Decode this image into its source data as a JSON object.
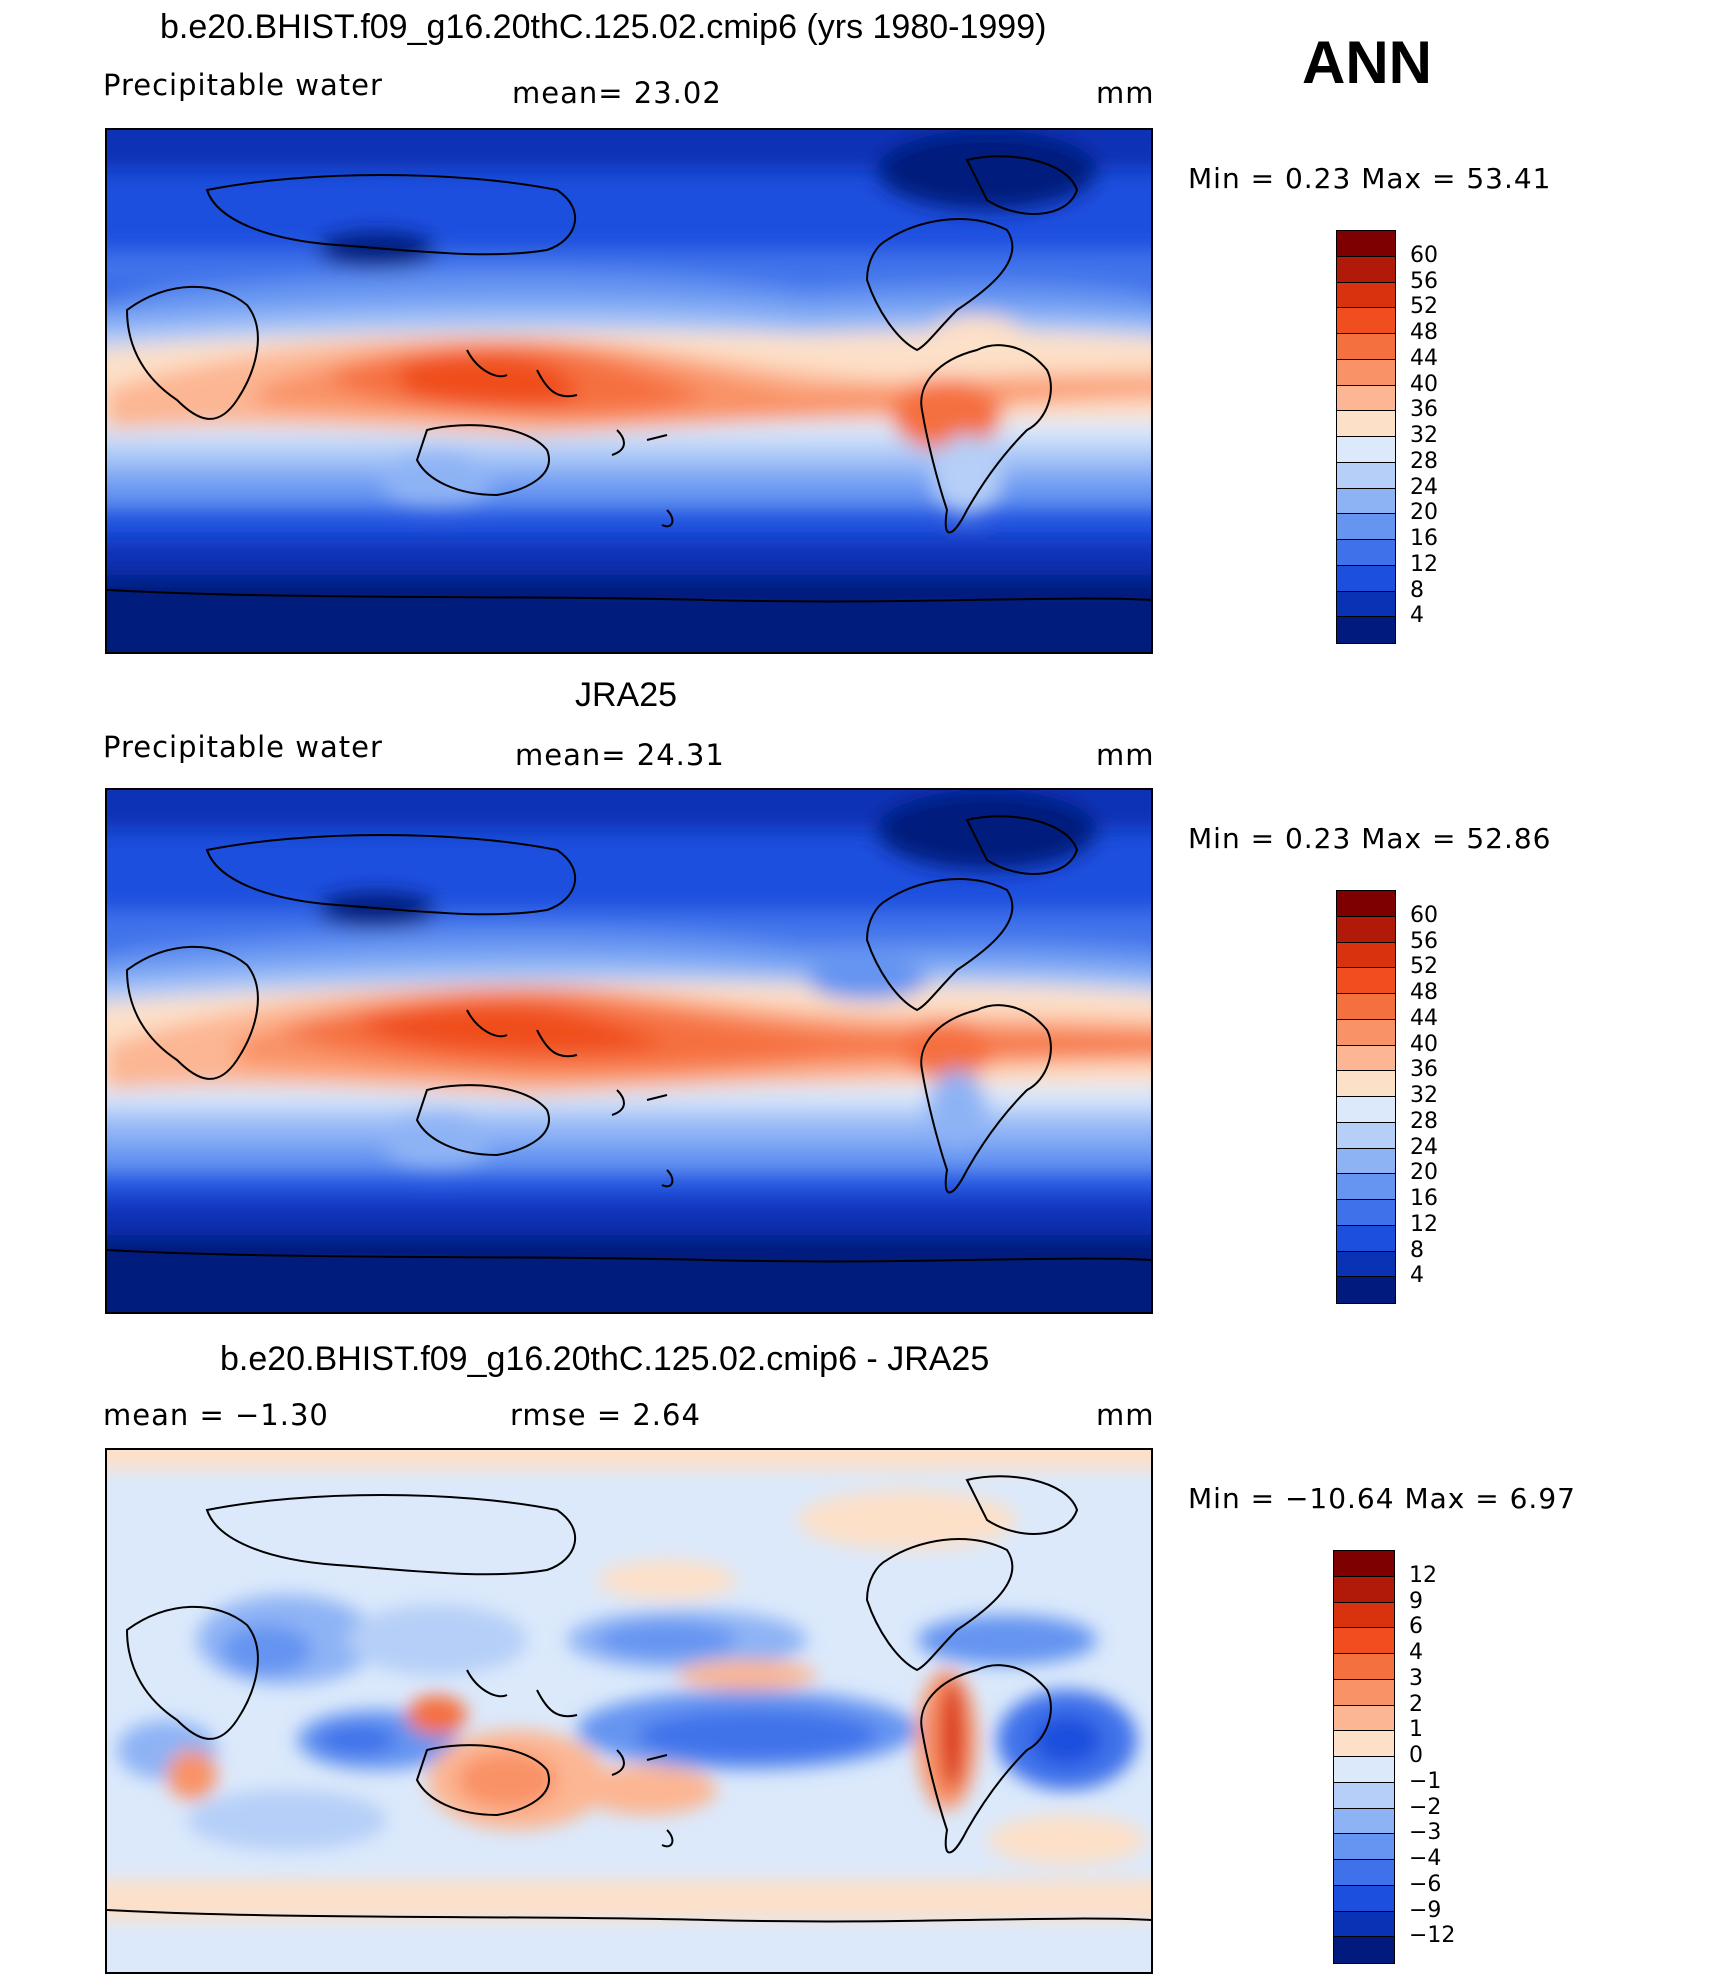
{
  "season": "ANN",
  "panels": [
    {
      "id": "model",
      "title": "b.e20.BHIST.f09_g16.20thC.125.02.cmip6 (yrs 1980-1999)",
      "left_label": "Precipitable  water",
      "center_label": "mean=   23.02",
      "units": "mm",
      "minmax": "Min  =     0.23  Max  =    53.41",
      "colorbar": {
        "levels": [
          "60",
          "56",
          "52",
          "48",
          "44",
          "40",
          "36",
          "32",
          "28",
          "24",
          "20",
          "16",
          "12",
          "8",
          "4"
        ],
        "colors": [
          "#7f0000",
          "#b11a09",
          "#d9320f",
          "#f04e1e",
          "#f5703f",
          "#f99266",
          "#fcb693",
          "#fde0c8",
          "#dbe9fb",
          "#b5cff8",
          "#8eb3f5",
          "#6594f1",
          "#3f72ea",
          "#1d4fde",
          "#0a32b5",
          "#001a7d"
        ]
      }
    },
    {
      "id": "obs",
      "title": "JRA25",
      "left_label": "Precipitable  water",
      "center_label": "mean=   24.31",
      "units": "mm",
      "minmax": "Min  =     0.23  Max  =    52.86",
      "colorbar": {
        "levels": [
          "60",
          "56",
          "52",
          "48",
          "44",
          "40",
          "36",
          "32",
          "28",
          "24",
          "20",
          "16",
          "12",
          "8",
          "4"
        ],
        "colors": [
          "#7f0000",
          "#b11a09",
          "#d9320f",
          "#f04e1e",
          "#f5703f",
          "#f99266",
          "#fcb693",
          "#fde0c8",
          "#dbe9fb",
          "#b5cff8",
          "#8eb3f5",
          "#6594f1",
          "#3f72ea",
          "#1d4fde",
          "#0a32b5",
          "#001a7d"
        ]
      }
    },
    {
      "id": "diff",
      "title": "b.e20.BHIST.f09_g16.20thC.125.02.cmip6 - JRA25",
      "left_label": "mean  =   −1.30",
      "center_label": "rmse  =     2.64",
      "units": "mm",
      "minmax": "Min  = −10.64  Max  =      6.97",
      "colorbar": {
        "levels": [
          "12",
          "9",
          "6",
          "4",
          "3",
          "2",
          "1",
          "0",
          "−1",
          "−2",
          "−3",
          "−4",
          "−6",
          "−9",
          "−12"
        ],
        "colors": [
          "#7f0000",
          "#b11a09",
          "#d9320f",
          "#f04e1e",
          "#f5703f",
          "#f99266",
          "#fcb693",
          "#fde0c8",
          "#dbe9fb",
          "#b5cff8",
          "#8eb3f5",
          "#6594f1",
          "#3f72ea",
          "#1d4fde",
          "#0a32b5",
          "#001a7d"
        ]
      }
    }
  ]
}
